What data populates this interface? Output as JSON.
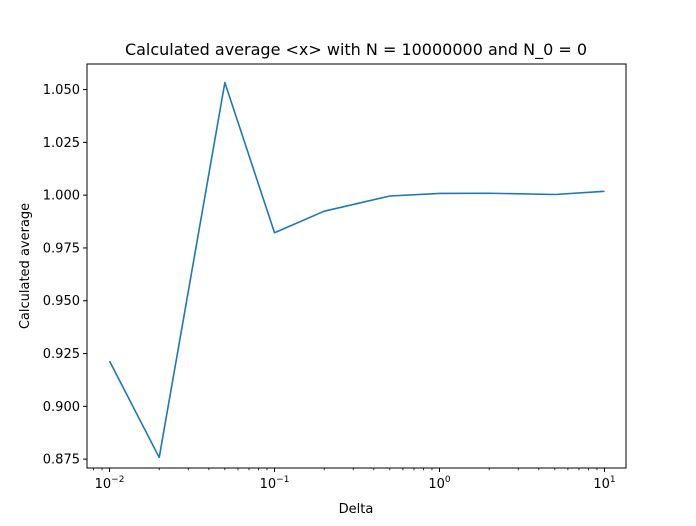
{
  "chart_data": {
    "type": "line",
    "title": "Calculated average <x> with N = 10000000 and N_0 = 0",
    "xlabel": "Delta",
    "ylabel": "Calculated average",
    "xscale": "log",
    "xlim": [
      0.0073,
      13.5
    ],
    "ylim": [
      0.8708,
      1.0621
    ],
    "xticks": [
      {
        "value": 0.01,
        "base": "10",
        "exp": "−2"
      },
      {
        "value": 0.1,
        "base": "10",
        "exp": "−1"
      },
      {
        "value": 1,
        "base": "10",
        "exp": "0"
      },
      {
        "value": 10,
        "base": "10",
        "exp": "1"
      }
    ],
    "yticks": [
      {
        "value": 0.875,
        "label": "0.875"
      },
      {
        "value": 0.9,
        "label": "0.900"
      },
      {
        "value": 0.925,
        "label": "0.925"
      },
      {
        "value": 0.95,
        "label": "0.950"
      },
      {
        "value": 0.975,
        "label": "0.975"
      },
      {
        "value": 1.0,
        "label": "1.000"
      },
      {
        "value": 1.025,
        "label": "1.025"
      },
      {
        "value": 1.05,
        "label": "1.050"
      }
    ],
    "grid": false,
    "legend": "none",
    "line_color": "#1f77b4",
    "series": [
      {
        "x": [
          0.01,
          0.02,
          0.05,
          0.1,
          0.2,
          0.5,
          1,
          2,
          5,
          10
        ],
        "y": [
          0.9214,
          0.8758,
          1.0533,
          0.9822,
          0.9924,
          0.9996,
          1.0008,
          1.0009,
          1.0003,
          1.0018
        ]
      }
    ]
  }
}
